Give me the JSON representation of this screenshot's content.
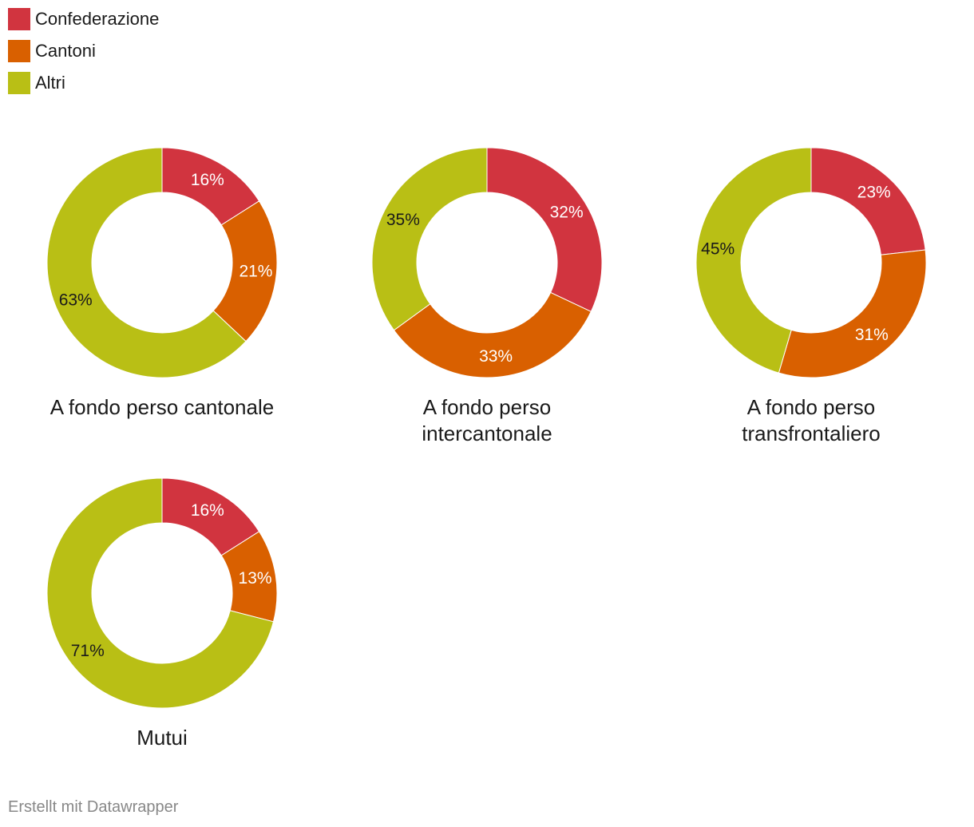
{
  "legend": {
    "items": [
      {
        "label": "Confederazione",
        "color": "#d1343f"
      },
      {
        "label": "Cantoni",
        "color": "#d96000"
      },
      {
        "label": "Altri",
        "color": "#b9bf15"
      }
    ]
  },
  "chart_data": [
    {
      "type": "pie",
      "title": "A fondo perso cantonale",
      "categories": [
        "Confederazione",
        "Cantoni",
        "Altri"
      ],
      "values": [
        16,
        21,
        63
      ],
      "labels": [
        "16%",
        "21%",
        "63%"
      ]
    },
    {
      "type": "pie",
      "title": "A fondo perso intercantonale",
      "categories": [
        "Confederazione",
        "Cantoni",
        "Altri"
      ],
      "values": [
        32,
        33,
        35
      ],
      "labels": [
        "32%",
        "33%",
        "35%"
      ]
    },
    {
      "type": "pie",
      "title": "A fondo perso transfrontaliero",
      "categories": [
        "Confederazione",
        "Cantoni",
        "Altri"
      ],
      "values": [
        23,
        31,
        45
      ],
      "labels": [
        "23%",
        "31%",
        "45%"
      ]
    },
    {
      "type": "pie",
      "title": "Mutui",
      "categories": [
        "Confederazione",
        "Cantoni",
        "Altri"
      ],
      "values": [
        16,
        13,
        71
      ],
      "labels": [
        "16%",
        "13%",
        "71%"
      ]
    }
  ],
  "label_colors": [
    "#ffffff",
    "#ffffff",
    "#1a1a1a"
  ],
  "footer": {
    "text": "Erstellt mit Datawrapper"
  }
}
